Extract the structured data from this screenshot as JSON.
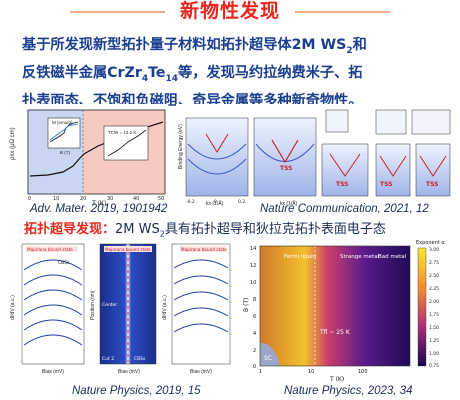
{
  "title": "新物性发现",
  "summary": {
    "line1": "基于所发现新型拓扑量子材料如拓扑超导体2M WS",
    "line1_sub": "2",
    "line1_end": "和",
    "line2_a": "反铁磁半金属CrZr",
    "line2_sub1": "4",
    "line2_b": "Te",
    "line2_sub2": "14",
    "line2_c": "等，发现马约拉纳费米子、拓",
    "line3": "扑表面态、不饱和负磁阻、奇异金属等多种新奇物性。"
  },
  "figures": {
    "adv_mater": {
      "caption": "Adv. Mater. 2019, 1901942",
      "ylabel": "ρxx (μΩ cm)",
      "xlabel": "T (K)",
      "inset1_y": "M (emu/g)",
      "inset1_x": "B (T)",
      "inset2_label": "TCW = 13.2 K",
      "ticks_x": [
        "0",
        "10",
        "20",
        "30",
        "40",
        "50"
      ]
    },
    "nature_comm": {
      "caption": "Nature Communication, 2021, 12",
      "ylabel": "Binding Energy (eV)",
      "xlabel": "kx (1/Å)",
      "labels": [
        "TSS",
        "TSS",
        "TSS",
        "TSS"
      ],
      "ticks_x": [
        "-0.2",
        "0",
        "0.2"
      ]
    },
    "nature_physics_2019": {
      "caption": "Nature Physics, 2019, 15",
      "ylabel1": "dI/dV (a.u.)",
      "ylabel2": "Position (nm)",
      "xlabel": "Bias (mV)",
      "tags": [
        "Majorana bound state",
        "CBSs",
        "Center",
        "Cut 2"
      ]
    },
    "nature_physics_2023": {
      "caption": "Nature Physics, 2023, 34",
      "ylabel": "B (T)",
      "xlabel": "T (K)",
      "regions": [
        "Fermi liquid",
        "Strange metal",
        "Bad metal",
        "SC"
      ],
      "annotation": "Tfl ~ 25 K",
      "colorbar_title": "Exponent α",
      "colorbar_ticks": [
        "3.00",
        "2.75",
        "2.50",
        "2.25",
        "2.00",
        "1.75",
        "1.50",
        "1.25",
        "1.00",
        "0.75"
      ],
      "yticks": [
        "14",
        "12",
        "10",
        "8",
        "6",
        "4",
        "2",
        "0"
      ],
      "xticks": [
        "1",
        "10",
        "100"
      ]
    }
  },
  "section2": {
    "highlight": "拓扑超导发现：",
    "text_a": "2M WS",
    "sub": "2",
    "text_b": "具有拓扑超导和狄拉克拓扑表面电子态"
  }
}
